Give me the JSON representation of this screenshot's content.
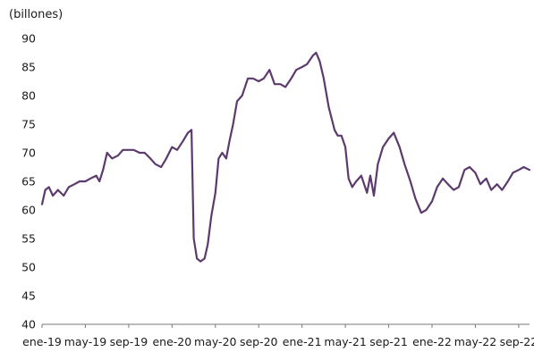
{
  "chart_data": {
    "type": "line",
    "title": "",
    "xlabel": "",
    "ylabel": "(billones)",
    "ylim": [
      40,
      90
    ],
    "yticks": [
      40,
      45,
      50,
      55,
      60,
      65,
      70,
      75,
      80,
      85,
      90
    ],
    "x_tick_labels": [
      "ene-19",
      "may-19",
      "sep-19",
      "ene-20",
      "may-20",
      "sep-20",
      "ene-21",
      "may-21",
      "sep-21",
      "ene-22",
      "may-22",
      "sep-22"
    ],
    "x_tick_dates": [
      "2019-01",
      "2019-05",
      "2019-09",
      "2020-01",
      "2020-05",
      "2020-09",
      "2021-01",
      "2021-05",
      "2021-09",
      "2022-01",
      "2022-05",
      "2022-09"
    ],
    "xlim": [
      "2019-01",
      "2022-10"
    ],
    "grid": false,
    "line_color": "#5c3a6e",
    "series": [
      {
        "x": [
          "2019-01",
          "2019-01-10",
          "2019-01-20",
          "2019-02",
          "2019-02-15",
          "2019-03",
          "2019-03-15",
          "2019-04",
          "2019-04-15",
          "2019-05",
          "2019-05-15",
          "2019-06",
          "2019-06-10",
          "2019-06-20",
          "2019-07",
          "2019-07-15",
          "2019-08",
          "2019-08-15",
          "2019-09",
          "2019-09-15",
          "2019-10",
          "2019-10-15",
          "2019-11",
          "2019-11-15",
          "2019-12",
          "2019-12-15",
          "2020-01",
          "2020-01-15",
          "2020-02",
          "2020-02-15",
          "2020-02-25",
          "2020-03",
          "2020-03-10",
          "2020-03-20",
          "2020-04",
          "2020-04-10",
          "2020-04-20",
          "2020-05",
          "2020-05-10",
          "2020-05-20",
          "2020-06",
          "2020-06-10",
          "2020-06-20",
          "2020-07",
          "2020-07-15",
          "2020-08",
          "2020-08-15",
          "2020-09",
          "2020-09-15",
          "2020-10",
          "2020-10-15",
          "2020-11",
          "2020-11-15",
          "2020-12",
          "2020-12-15",
          "2021-01",
          "2021-01-15",
          "2021-02",
          "2021-02-10",
          "2021-02-20",
          "2021-03",
          "2021-03-15",
          "2021-04",
          "2021-04-10",
          "2021-04-20",
          "2021-05",
          "2021-05-10",
          "2021-05-20",
          "2021-06",
          "2021-06-15",
          "2021-07",
          "2021-07-10",
          "2021-07-20",
          "2021-08",
          "2021-08-15",
          "2021-09",
          "2021-09-15",
          "2021-10",
          "2021-10-15",
          "2021-11",
          "2021-11-15",
          "2021-12",
          "2021-12-15",
          "2022-01",
          "2022-01-15",
          "2022-02",
          "2022-02-15",
          "2022-03",
          "2022-03-15",
          "2022-04",
          "2022-04-15",
          "2022-05",
          "2022-05-15",
          "2022-06",
          "2022-06-15",
          "2022-07",
          "2022-07-15",
          "2022-08",
          "2022-08-15",
          "2022-09",
          "2022-09-15",
          "2022-10"
        ],
        "y": [
          61,
          63.5,
          64,
          62.5,
          63.5,
          62.5,
          64,
          64.5,
          65,
          65,
          65.5,
          66,
          65,
          67,
          70,
          69,
          69.5,
          70.5,
          70.5,
          70.5,
          70,
          70,
          69,
          68,
          67.5,
          69,
          71,
          70.5,
          72,
          73.5,
          74,
          55,
          51.5,
          51,
          51.5,
          54,
          59,
          63,
          69,
          70,
          69,
          72,
          75,
          79,
          80,
          83,
          83,
          82.5,
          83,
          84.5,
          82,
          82,
          81.5,
          83,
          84.5,
          85,
          85.5,
          87,
          87.5,
          86,
          83,
          78,
          74,
          73,
          73,
          71,
          65.5,
          64,
          65,
          66,
          63,
          66,
          62.5,
          68,
          71,
          72.5,
          73.5,
          71,
          68,
          65,
          62,
          59.5,
          60,
          61.5,
          64,
          65.5,
          64.5,
          63.5,
          64,
          67,
          67.5,
          66.5,
          64.5,
          65.5,
          63.5,
          64.5,
          63.5,
          65,
          66.5,
          67,
          67.5,
          67
        ]
      }
    ]
  }
}
